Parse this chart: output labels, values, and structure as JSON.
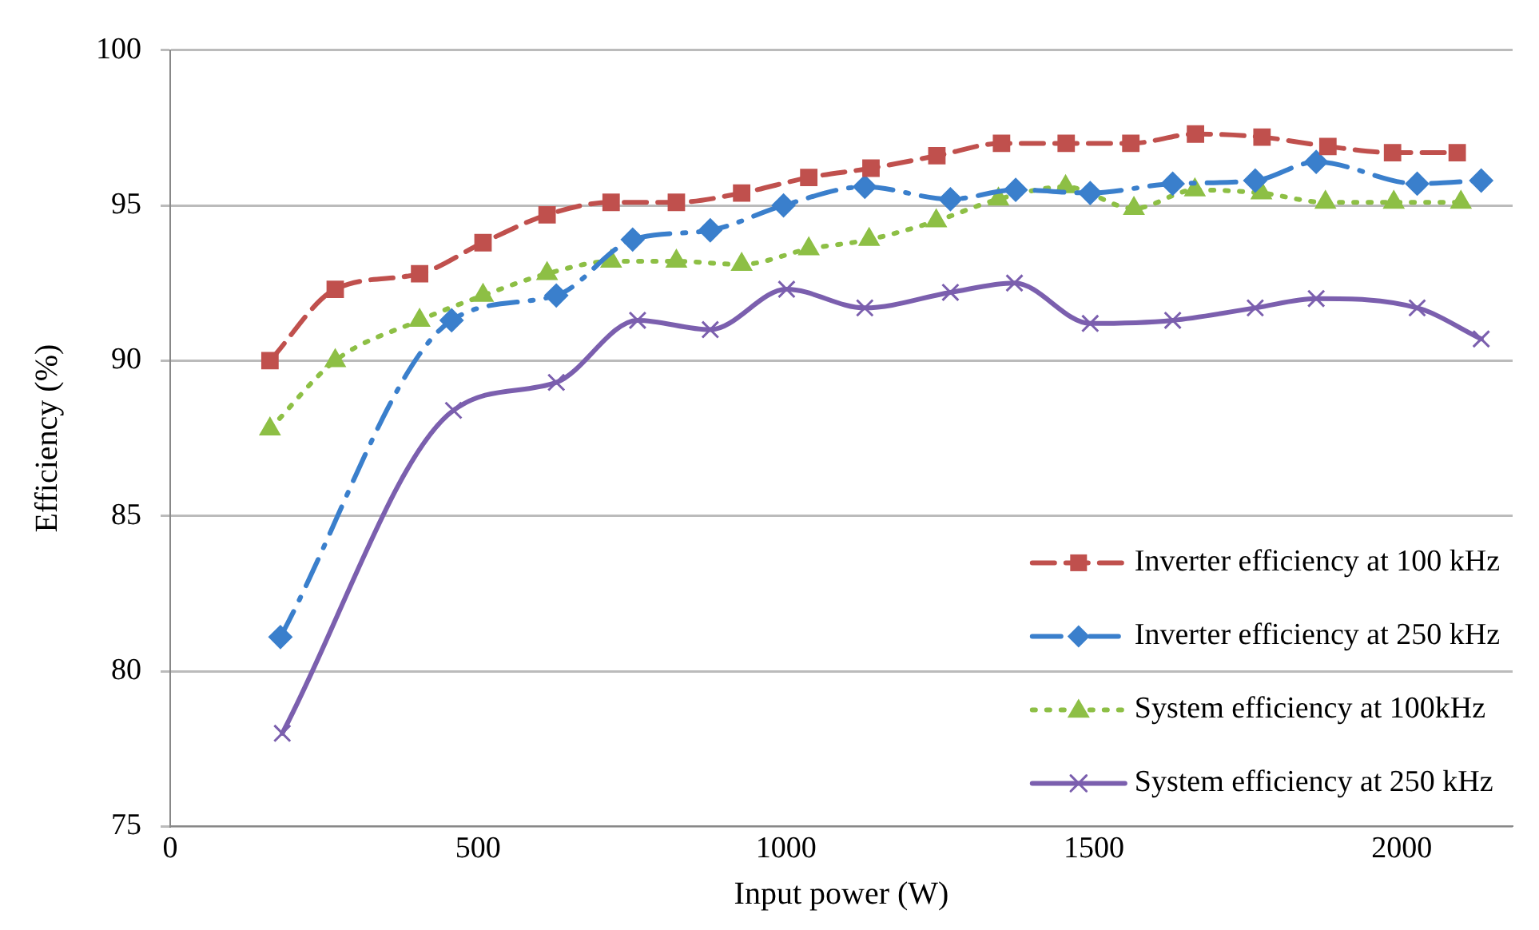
{
  "chart_data": {
    "type": "line",
    "xlabel": "Input power (W)",
    "ylabel": "Efficiency (%)",
    "xlim": [
      0,
      2180
    ],
    "xticks": [
      0,
      500,
      1000,
      1500,
      2000
    ],
    "ylim": [
      75,
      100
    ],
    "yticks": [
      75,
      80,
      85,
      90,
      95,
      100
    ],
    "grid": "y",
    "legend": "bottom right",
    "series": [
      {
        "name": "Inverter efficiency at 100 kHz",
        "color": "#c0504d",
        "marker": "square",
        "line_style": "dashed",
        "x": [
          162,
          268,
          405,
          508,
          612,
          716,
          822,
          928,
          1037,
          1138,
          1245,
          1350,
          1455,
          1560,
          1665,
          1773,
          1880,
          1985,
          2090
        ],
        "values": [
          90.0,
          92.3,
          92.8,
          93.8,
          94.7,
          95.1,
          95.1,
          95.4,
          95.9,
          96.2,
          96.6,
          97.0,
          97.0,
          97.0,
          97.3,
          97.2,
          96.9,
          96.7,
          96.7
        ]
      },
      {
        "name": "Inverter efficiency at 250 kHz",
        "color": "#3a7fcc",
        "marker": "diamond",
        "line_style": "dashdot",
        "x": [
          179,
          457,
          627,
          751,
          877,
          996,
          1128,
          1267,
          1373,
          1494,
          1628,
          1762,
          1861,
          2025,
          2129
        ],
        "values": [
          81.1,
          91.3,
          92.1,
          93.9,
          94.2,
          95.0,
          95.6,
          95.2,
          95.5,
          95.4,
          95.7,
          95.8,
          96.4,
          95.7,
          95.8
        ]
      },
      {
        "name": "System efficiency at 100kHz",
        "color": "#8dbf45",
        "marker": "triangle",
        "line_style": "dotted",
        "x": [
          162,
          268,
          405,
          508,
          612,
          716,
          822,
          928,
          1037,
          1135,
          1244,
          1345,
          1454,
          1565,
          1664,
          1772,
          1876,
          1987,
          2096
        ],
        "values": [
          87.8,
          90.0,
          91.3,
          92.1,
          92.8,
          93.2,
          93.2,
          93.1,
          93.6,
          93.9,
          94.5,
          95.2,
          95.6,
          94.9,
          95.5,
          95.4,
          95.1,
          95.1,
          95.1
        ]
      },
      {
        "name": "System efficiency at 250 kHz",
        "color": "#7b5fae",
        "marker": "cross",
        "line_style": "solid",
        "x": [
          182,
          460,
          627,
          759,
          877,
          1001,
          1128,
          1267,
          1371,
          1494,
          1628,
          1762,
          1861,
          2025,
          2129
        ],
        "values": [
          78.0,
          88.4,
          89.3,
          91.3,
          91.0,
          92.3,
          91.7,
          92.2,
          92.5,
          91.2,
          91.3,
          91.7,
          92.0,
          91.7,
          90.7
        ]
      }
    ]
  }
}
